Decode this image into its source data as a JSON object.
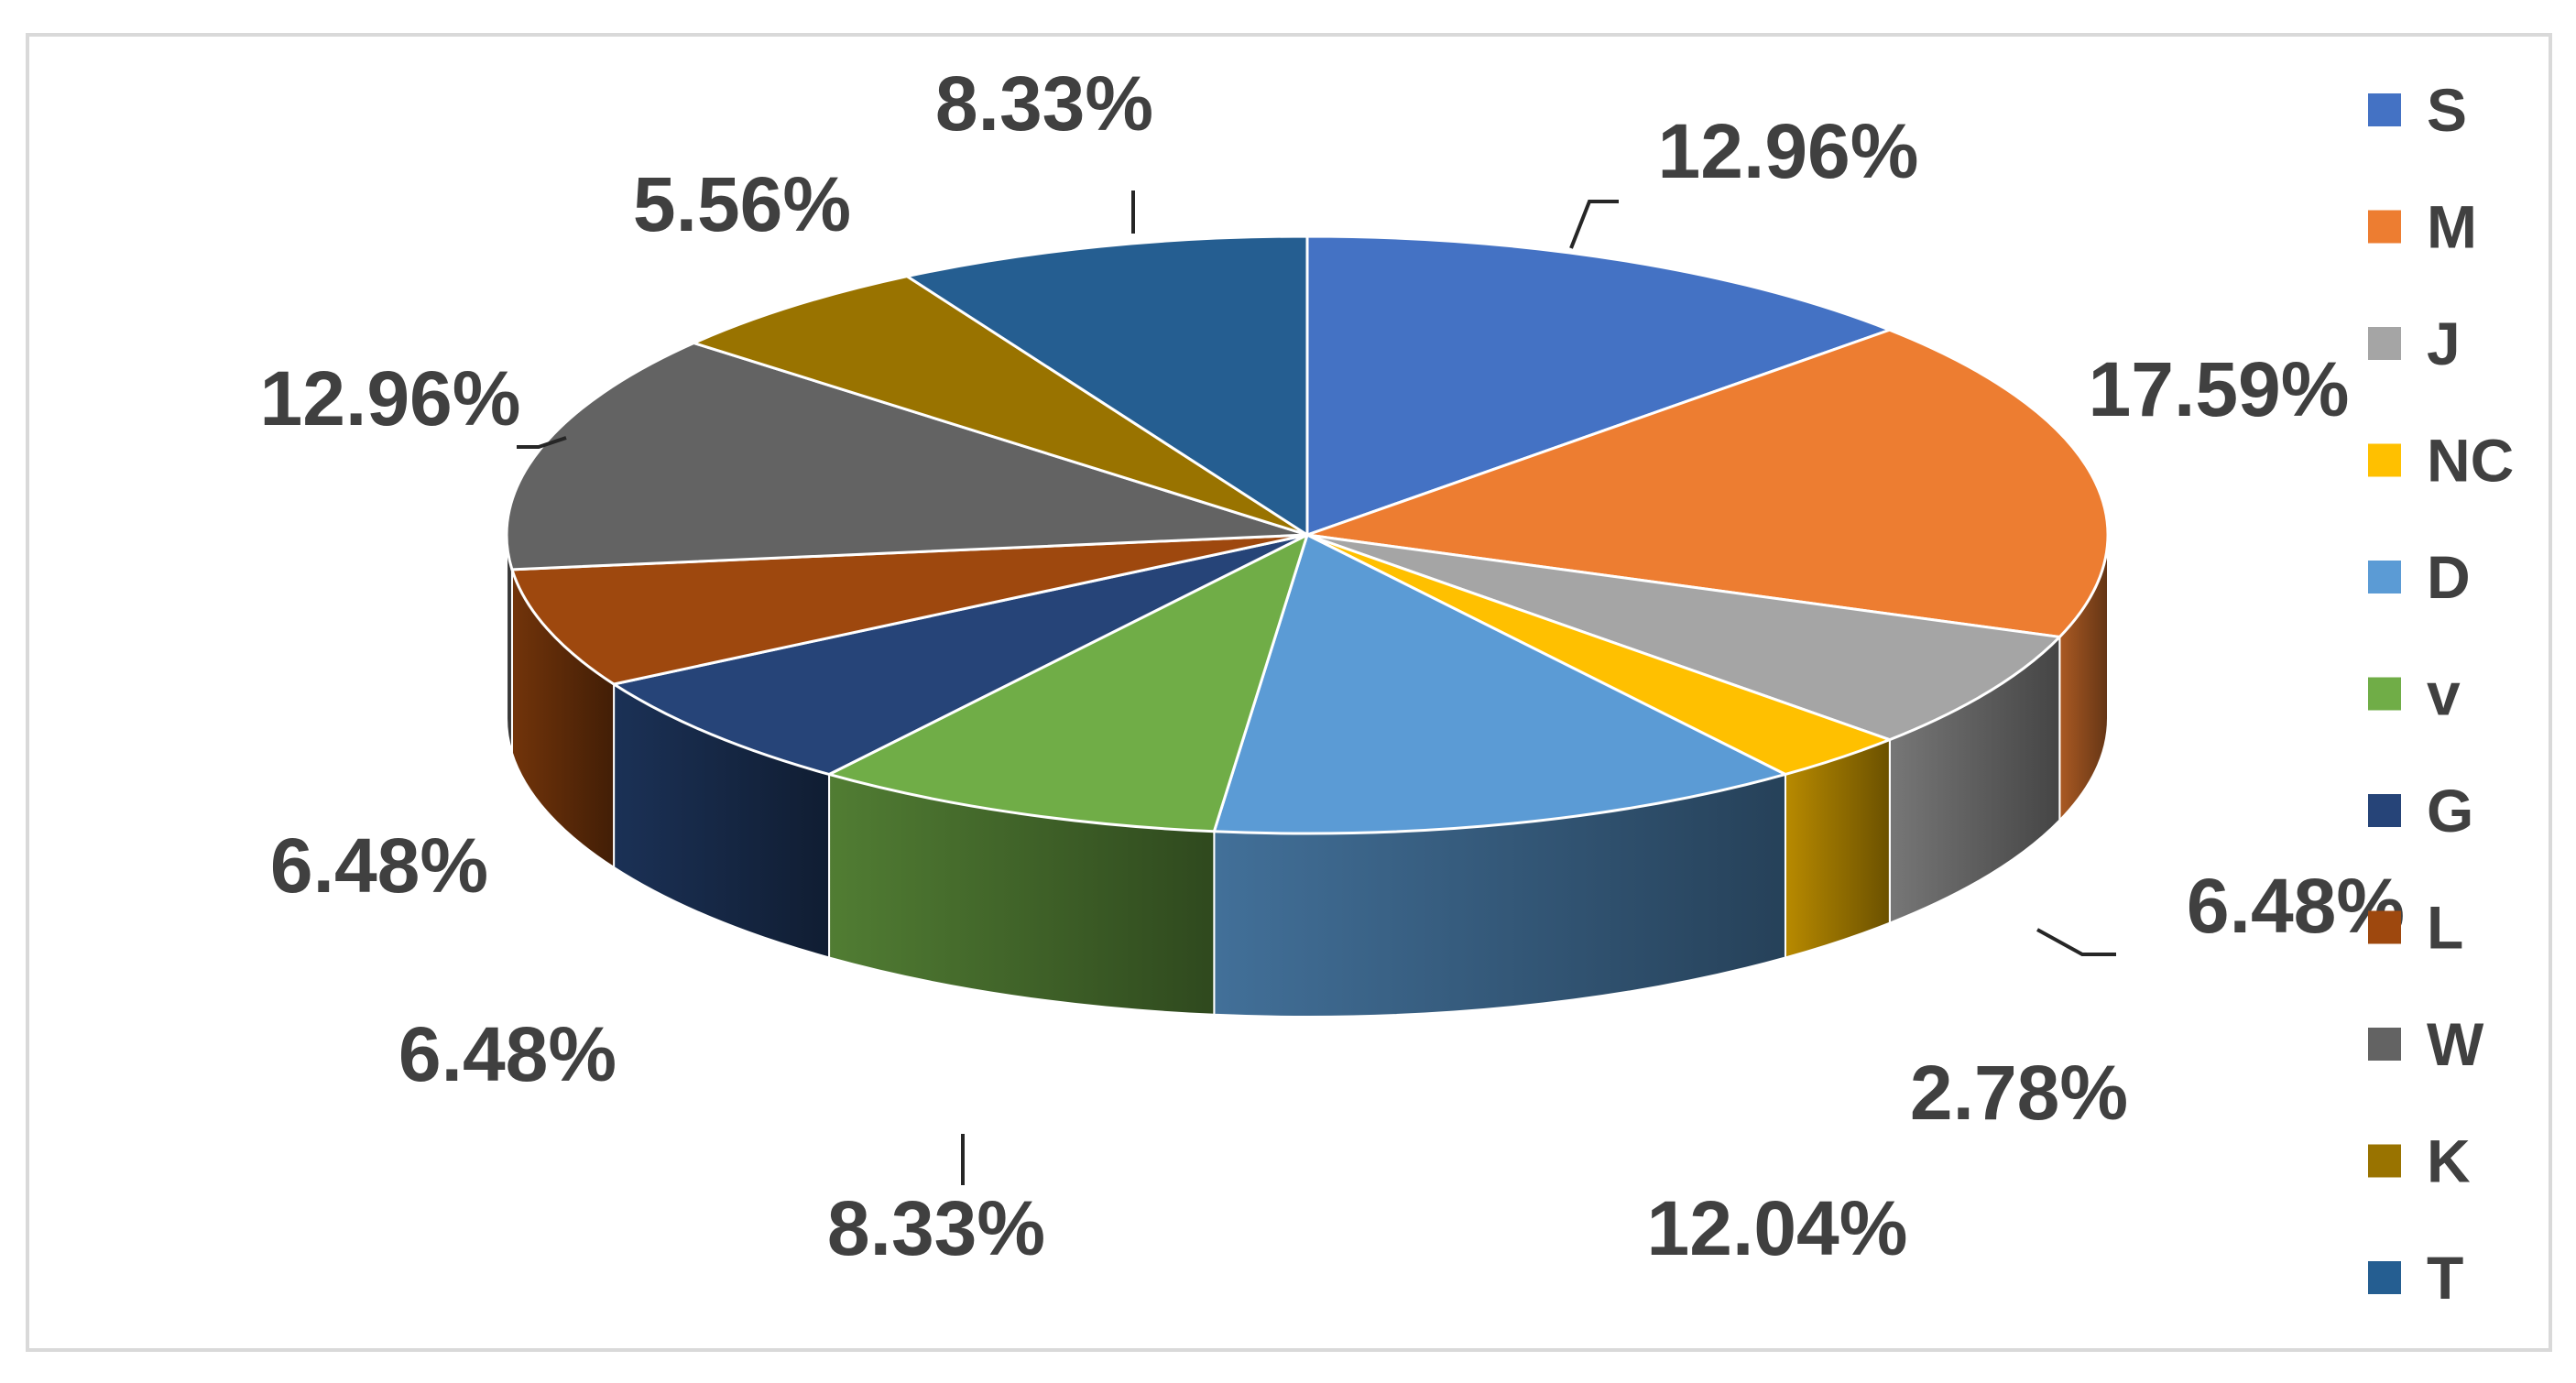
{
  "chart_data": {
    "type": "pie",
    "style": "3d",
    "categories": [
      "S",
      "M",
      "J",
      "NC",
      "D",
      "v",
      "G",
      "L",
      "W",
      "K",
      "T"
    ],
    "values": [
      12.96,
      17.59,
      6.48,
      2.78,
      12.04,
      8.33,
      6.48,
      6.48,
      12.96,
      5.56,
      8.33
    ],
    "data_labels": [
      "12.96%",
      "17.59%",
      "6.48%",
      "2.78%",
      "12.04%",
      "8.33%",
      "6.48%",
      "6.48%",
      "12.96%",
      "5.56%",
      "8.33%"
    ],
    "colors": [
      "#4472C4",
      "#ED7D31",
      "#A5A5A5",
      "#FFC000",
      "#5B9BD5",
      "#70AD47",
      "#264478",
      "#9E480E",
      "#636363",
      "#997300",
      "#255E91"
    ],
    "legend": {
      "placement": "right",
      "entries": [
        "S",
        "M",
        "J",
        "NC",
        "D",
        "v",
        "G",
        "L",
        "W",
        "K",
        "T"
      ]
    },
    "title": ""
  }
}
